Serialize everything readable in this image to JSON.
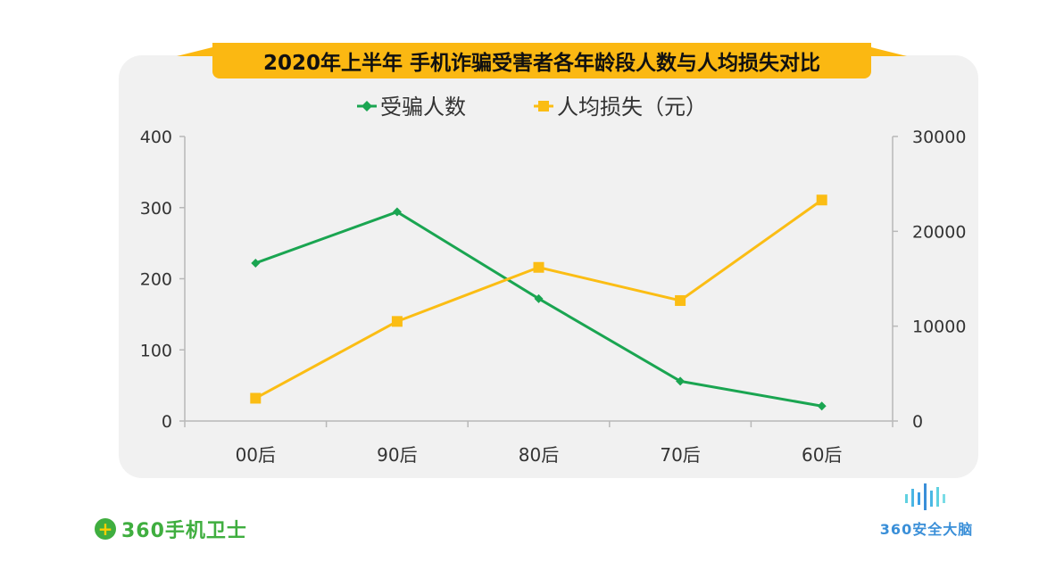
{
  "chart_data": {
    "type": "line",
    "title": "2020年上半年 手机诈骗受害者各年龄段人数与人均损失对比",
    "categories": [
      "00后",
      "90后",
      "80后",
      "70后",
      "60后"
    ],
    "series": [
      {
        "name": "受骗人数",
        "axis": "left",
        "color": "#1aa551",
        "marker": "diamond",
        "values": [
          222,
          294,
          172,
          56,
          21
        ]
      },
      {
        "name": "人均损失（元）",
        "axis": "right",
        "color": "#fbbd14",
        "marker": "square",
        "values": [
          2400,
          10500,
          16200,
          12700,
          23300
        ]
      }
    ],
    "y_left": {
      "min": 0,
      "max": 400,
      "ticks": [
        0,
        100,
        200,
        300,
        400
      ]
    },
    "y_right": {
      "min": 0,
      "max": 30000,
      "ticks": [
        0,
        10000,
        20000,
        30000
      ]
    },
    "legend_position": "top-center",
    "grid": false
  },
  "branding": {
    "left_mark": "+",
    "left_text": "360手机卫士",
    "right_text": "360安全大脑"
  },
  "colors": {
    "banner": "#fbb812",
    "card": "#f1f1f1",
    "axis": "#b8b8b8"
  }
}
